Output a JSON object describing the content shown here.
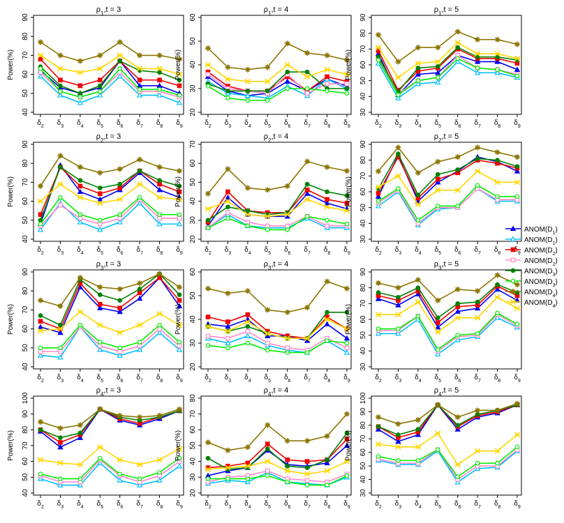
{
  "chart_data": {
    "type": "line",
    "title": "",
    "xlabel": "",
    "ylabel": "Power(%)",
    "categories": [
      "δ2",
      "δ3",
      "δ4",
      "δ5",
      "δ6",
      "δ7",
      "δ8",
      "δ9"
    ],
    "category_labels": [
      {
        "base": "δ",
        "sub": "2"
      },
      {
        "base": "δ",
        "sub": "3"
      },
      {
        "base": "δ",
        "sub": "4"
      },
      {
        "base": "δ",
        "sub": "5"
      },
      {
        "base": "δ",
        "sub": "6"
      },
      {
        "base": "δ",
        "sub": "7"
      },
      {
        "base": "δ",
        "sub": "8"
      },
      {
        "base": "δ",
        "sub": "9"
      }
    ],
    "legend": {
      "placement": "right",
      "entries": [
        {
          "label": "ANOM(D1)",
          "color": "#0000ee",
          "marker": "triangle"
        },
        {
          "label": "ANOM(D1)",
          "color": "#00bfff",
          "marker": "triangle-open"
        },
        {
          "label": "ANOM(D2)",
          "color": "#ee0000",
          "marker": "square"
        },
        {
          "label": "ANOM(D2)",
          "color": "#ff88cc",
          "marker": "square-open"
        },
        {
          "label": "ANOM(D3)",
          "color": "#008000",
          "marker": "circle"
        },
        {
          "label": "ANOM(D3)",
          "color": "#00ee00",
          "marker": "circle-open"
        },
        {
          "label": "ANOM(D4)",
          "color": "#8b7500",
          "marker": "star"
        },
        {
          "label": "ANOM(D4)",
          "color": "#ffd700",
          "marker": "x"
        }
      ]
    },
    "panels": [
      {
        "title": "ρ1,t = 3",
        "ylim": [
          40,
          90
        ],
        "yticks": [
          40,
          50,
          60,
          70,
          80,
          90
        ],
        "series": [
          [
            62,
            53,
            50,
            53,
            67,
            54,
            54,
            50
          ],
          [
            59,
            49,
            45,
            49,
            59,
            49,
            49,
            45
          ],
          [
            68,
            57,
            54,
            57,
            67,
            57,
            57,
            54
          ],
          [
            61,
            51,
            48,
            51,
            61,
            51,
            51,
            48
          ],
          [
            64,
            54,
            50,
            54,
            67,
            62,
            61,
            57
          ],
          [
            63,
            51,
            48,
            51,
            63,
            52,
            52,
            49
          ],
          [
            77,
            70,
            67,
            70,
            77,
            70,
            70,
            68
          ],
          [
            70,
            63,
            61,
            63,
            70,
            63,
            63,
            60
          ]
        ]
      },
      {
        "title": "ρ1,t = 4",
        "ylim": [
          20,
          60
        ],
        "yticks": [
          20,
          30,
          40,
          50,
          60
        ],
        "series": [
          [
            35,
            29,
            27,
            28,
            33,
            29,
            34,
            31
          ],
          [
            33,
            28,
            27,
            26,
            31,
            27,
            34,
            30
          ],
          [
            37,
            31,
            29,
            29,
            35,
            29,
            35,
            33
          ],
          [
            36,
            30,
            29,
            28,
            36,
            28,
            32,
            32
          ],
          [
            32,
            29,
            29,
            29,
            37,
            37,
            30,
            30
          ],
          [
            31,
            26,
            25,
            25,
            30,
            30,
            29,
            28
          ],
          [
            47,
            39,
            38,
            39,
            49,
            45,
            44,
            42
          ],
          [
            40,
            34,
            33,
            33,
            40,
            35,
            38,
            36
          ]
        ]
      },
      {
        "title": "ρ1,t = 5",
        "ylim": [
          30,
          90
        ],
        "yticks": [
          30,
          40,
          50,
          60,
          70,
          80,
          90
        ],
        "series": [
          [
            67,
            41,
            54,
            55,
            66,
            62,
            62,
            57
          ],
          [
            61,
            39,
            48,
            49,
            62,
            55,
            55,
            52
          ],
          [
            69,
            44,
            56,
            58,
            70,
            64,
            64,
            61
          ],
          [
            64,
            42,
            50,
            52,
            66,
            58,
            57,
            54
          ],
          [
            65,
            43,
            58,
            59,
            71,
            65,
            65,
            63
          ],
          [
            63,
            41,
            50,
            52,
            64,
            58,
            57,
            53
          ],
          [
            79,
            62,
            71,
            71,
            81,
            76,
            76,
            73
          ],
          [
            71,
            52,
            61,
            62,
            74,
            67,
            67,
            64
          ]
        ]
      },
      {
        "title": "ρ2,t = 3",
        "ylim": [
          40,
          90
        ],
        "yticks": [
          40,
          50,
          60,
          70,
          80,
          90
        ],
        "series": [
          [
            48,
            79,
            65,
            61,
            66,
            75,
            66,
            62
          ],
          [
            45,
            59,
            49,
            45,
            49,
            59,
            48,
            48
          ],
          [
            53,
            78,
            68,
            64,
            67,
            76,
            69,
            65
          ],
          [
            47,
            58,
            51,
            48,
            51,
            61,
            51,
            51
          ],
          [
            50,
            78,
            71,
            67,
            69,
            76,
            71,
            68
          ],
          [
            48,
            62,
            53,
            50,
            53,
            62,
            53,
            53
          ],
          [
            68,
            84,
            78,
            75,
            77,
            82,
            78,
            76
          ],
          [
            60,
            69,
            62,
            59,
            61,
            69,
            62,
            61
          ]
        ]
      },
      {
        "title": "ρ2,t = 4",
        "ylim": [
          20,
          70
        ],
        "yticks": [
          20,
          30,
          40,
          50,
          60,
          70
        ],
        "series": [
          [
            27,
            42,
            33,
            32,
            32,
            44,
            39,
            36
          ],
          [
            26,
            33,
            27,
            26,
            26,
            31,
            26,
            26
          ],
          [
            29,
            45,
            35,
            34,
            34,
            46,
            41,
            39
          ],
          [
            26,
            34,
            29,
            27,
            27,
            32,
            27,
            27
          ],
          [
            30,
            37,
            35,
            33,
            34,
            49,
            45,
            43
          ],
          [
            26,
            31,
            27,
            25,
            25,
            32,
            30,
            28
          ],
          [
            44,
            57,
            47,
            46,
            48,
            61,
            58,
            56
          ],
          [
            36,
            40,
            33,
            32,
            33,
            41,
            37,
            35
          ]
        ]
      },
      {
        "title": "ρ2,t = 5",
        "ylim": [
          30,
          90
        ],
        "yticks": [
          30,
          40,
          50,
          60,
          70,
          80,
          90
        ],
        "series": [
          [
            57,
            83,
            54,
            66,
            73,
            82,
            79,
            73
          ],
          [
            51,
            60,
            39,
            49,
            50,
            62,
            54,
            54
          ],
          [
            59,
            82,
            56,
            68,
            72,
            80,
            78,
            75
          ],
          [
            53,
            61,
            40,
            50,
            50,
            62,
            55,
            55
          ],
          [
            62,
            84,
            58,
            71,
            74,
            81,
            80,
            76
          ],
          [
            54,
            62,
            42,
            51,
            51,
            64,
            57,
            57
          ],
          [
            73,
            88,
            72,
            79,
            82,
            88,
            85,
            82
          ],
          [
            63,
            70,
            52,
            61,
            61,
            73,
            66,
            66
          ]
        ]
      },
      {
        "title": "ρ3,t = 3",
        "ylim": [
          40,
          90
        ],
        "yticks": [
          40,
          50,
          60,
          70,
          80,
          90
        ],
        "series": [
          [
            61,
            58,
            82,
            71,
            69,
            76,
            87,
            72
          ],
          [
            46,
            45,
            61,
            49,
            46,
            49,
            58,
            49
          ],
          [
            64,
            60,
            84,
            73,
            71,
            79,
            87,
            75
          ],
          [
            48,
            48,
            61,
            51,
            48,
            51,
            60,
            51
          ],
          [
            67,
            62,
            86,
            78,
            75,
            81,
            89,
            78
          ],
          [
            50,
            50,
            62,
            53,
            50,
            53,
            62,
            53
          ],
          [
            75,
            72,
            87,
            82,
            81,
            84,
            89,
            82
          ],
          [
            59,
            60,
            69,
            62,
            58,
            62,
            68,
            62
          ]
        ]
      },
      {
        "title": "ρ3,t = 4",
        "ylim": [
          20,
          60
        ],
        "yticks": [
          20,
          30,
          40,
          50,
          60
        ],
        "series": [
          [
            38,
            37,
            40,
            33,
            33,
            31,
            38,
            32
          ],
          [
            32,
            30,
            33,
            29,
            27,
            26,
            31,
            26
          ],
          [
            41,
            39,
            42,
            35,
            33,
            32,
            41,
            36
          ],
          [
            33,
            32,
            35,
            30,
            28,
            27,
            32,
            28
          ],
          [
            37,
            35,
            37,
            34,
            32,
            32,
            43,
            43
          ],
          [
            29,
            28,
            30,
            27,
            26,
            26,
            31,
            30
          ],
          [
            53,
            51,
            52,
            44,
            43,
            45,
            56,
            53
          ],
          [
            37,
            35,
            39,
            34,
            32,
            32,
            40,
            36
          ]
        ]
      },
      {
        "title": "ρ3,t = 5",
        "ylim": [
          30,
          90
        ],
        "yticks": [
          30,
          40,
          50,
          60,
          70,
          80,
          90
        ],
        "series": [
          [
            73,
            69,
            76,
            55,
            65,
            67,
            79,
            72
          ],
          [
            51,
            51,
            60,
            38,
            47,
            49,
            61,
            55
          ],
          [
            75,
            72,
            78,
            58,
            68,
            69,
            81,
            75
          ],
          [
            53,
            53,
            62,
            40,
            49,
            50,
            63,
            56
          ],
          [
            77,
            74,
            80,
            61,
            70,
            71,
            82,
            77
          ],
          [
            54,
            54,
            62,
            41,
            50,
            51,
            64,
            57
          ],
          [
            83,
            80,
            85,
            72,
            79,
            78,
            88,
            82
          ],
          [
            63,
            63,
            71,
            52,
            61,
            61,
            74,
            67
          ]
        ]
      },
      {
        "title": "ρ4,t = 3",
        "ylim": [
          40,
          100
        ],
        "yticks": [
          40,
          50,
          60,
          70,
          80,
          90,
          100
        ],
        "series": [
          [
            79,
            69,
            75,
            93,
            86,
            83,
            87,
            92
          ],
          [
            49,
            45,
            45,
            59,
            48,
            45,
            48,
            57
          ],
          [
            80,
            72,
            77,
            93,
            87,
            84,
            88,
            92
          ],
          [
            51,
            47,
            47,
            61,
            51,
            47,
            51,
            60
          ],
          [
            80,
            75,
            78,
            93,
            88,
            86,
            88,
            92
          ],
          [
            52,
            49,
            49,
            62,
            52,
            49,
            53,
            62
          ],
          [
            85,
            81,
            83,
            93,
            89,
            88,
            89,
            93
          ],
          [
            61,
            59,
            58,
            69,
            61,
            58,
            61,
            68
          ]
        ]
      },
      {
        "title": "ρ4,t = 4",
        "ylim": [
          20,
          80
        ],
        "yticks": [
          20,
          30,
          40,
          50,
          60,
          70,
          80
        ],
        "series": [
          [
            31,
            34,
            36,
            47,
            38,
            37,
            39,
            50
          ],
          [
            26,
            28,
            27,
            33,
            27,
            26,
            25,
            30
          ],
          [
            36,
            37,
            39,
            51,
            41,
            40,
            41,
            54
          ],
          [
            27,
            30,
            31,
            34,
            29,
            28,
            27,
            32
          ],
          [
            42,
            35,
            36,
            48,
            37,
            36,
            41,
            58
          ],
          [
            29,
            29,
            29,
            31,
            27,
            25,
            25,
            31
          ],
          [
            52,
            47,
            49,
            63,
            53,
            53,
            56,
            70
          ],
          [
            35,
            36,
            37,
            40,
            34,
            32,
            34,
            40
          ]
        ]
      },
      {
        "title": "ρ4,t = 5",
        "ylim": [
          30,
          100
        ],
        "yticks": [
          30,
          40,
          50,
          60,
          70,
          80,
          90,
          100
        ],
        "series": [
          [
            77,
            68,
            73,
            95,
            77,
            86,
            89,
            95
          ],
          [
            54,
            51,
            51,
            61,
            38,
            48,
            49,
            61
          ],
          [
            79,
            71,
            75,
            95,
            79,
            87,
            90,
            95
          ],
          [
            55,
            52,
            52,
            62,
            40,
            50,
            50,
            62
          ],
          [
            79,
            73,
            77,
            95,
            80,
            88,
            91,
            95
          ],
          [
            57,
            54,
            54,
            62,
            42,
            52,
            52,
            64
          ],
          [
            86,
            81,
            84,
            95,
            86,
            91,
            91,
            96
          ],
          [
            66,
            64,
            64,
            74,
            51,
            61,
            61,
            73
          ]
        ]
      }
    ]
  }
}
